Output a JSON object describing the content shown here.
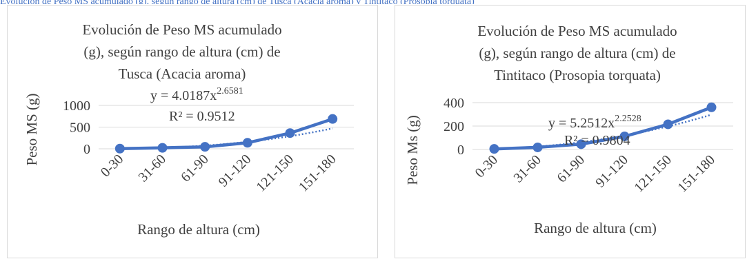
{
  "top_fragment": "Evolución de Peso MS acumulado (g), según rango de altura (cm) de Tusca (Acacia aroma)  y Tintitaco (Prosopia torquata)",
  "colors": {
    "series": "#4472C4",
    "text": "#404040",
    "grid": "#d9d9d9"
  },
  "chart_data": [
    {
      "type": "line",
      "title": [
        "Evolución de Peso MS acumulado",
        "(g), según rango de altura (cm) de",
        "Tusca (Acacia aroma)"
      ],
      "xlabel": "Rango de altura (cm)",
      "ylabel": "Peso MS (g)",
      "categories": [
        "0-30",
        "31-60",
        "61-90",
        "91-120",
        "121-150",
        "151-180"
      ],
      "series": [
        {
          "values": [
            4,
            22,
            45,
            138,
            362,
            688
          ]
        }
      ],
      "trendline": {
        "kind": "power",
        "a": 4.0187,
        "b": 2.6581
      },
      "equation": {
        "base": "y = 4.0187x",
        "exponent": "2.6581",
        "r2": "R² = 0.9512"
      },
      "yticks": [
        0,
        500,
        1000
      ],
      "ylim": [
        0,
        1000
      ],
      "grid": true
    },
    {
      "type": "line",
      "title": [
        "Evolución de Peso MS acumulado",
        "(g), según rango de altura (cm) de",
        "Tintitaco (Prosopia torquata)"
      ],
      "xlabel": "Rango de altura (cm)",
      "ylabel": "Peso Ms (g)",
      "categories": [
        "0-30",
        "31-60",
        "61-90",
        "91-120",
        "121-150",
        "151-180"
      ],
      "series": [
        {
          "values": [
            5,
            18,
            45,
            112,
            215,
            360
          ]
        }
      ],
      "trendline": {
        "kind": "power",
        "a": 5.2512,
        "b": 2.2528
      },
      "equation": {
        "base": "y = 5.2512x",
        "exponent": "2.2528",
        "r2": "R² = 0.9804"
      },
      "yticks": [
        0,
        200,
        400
      ],
      "ylim": [
        0,
        400
      ],
      "grid": true
    }
  ]
}
